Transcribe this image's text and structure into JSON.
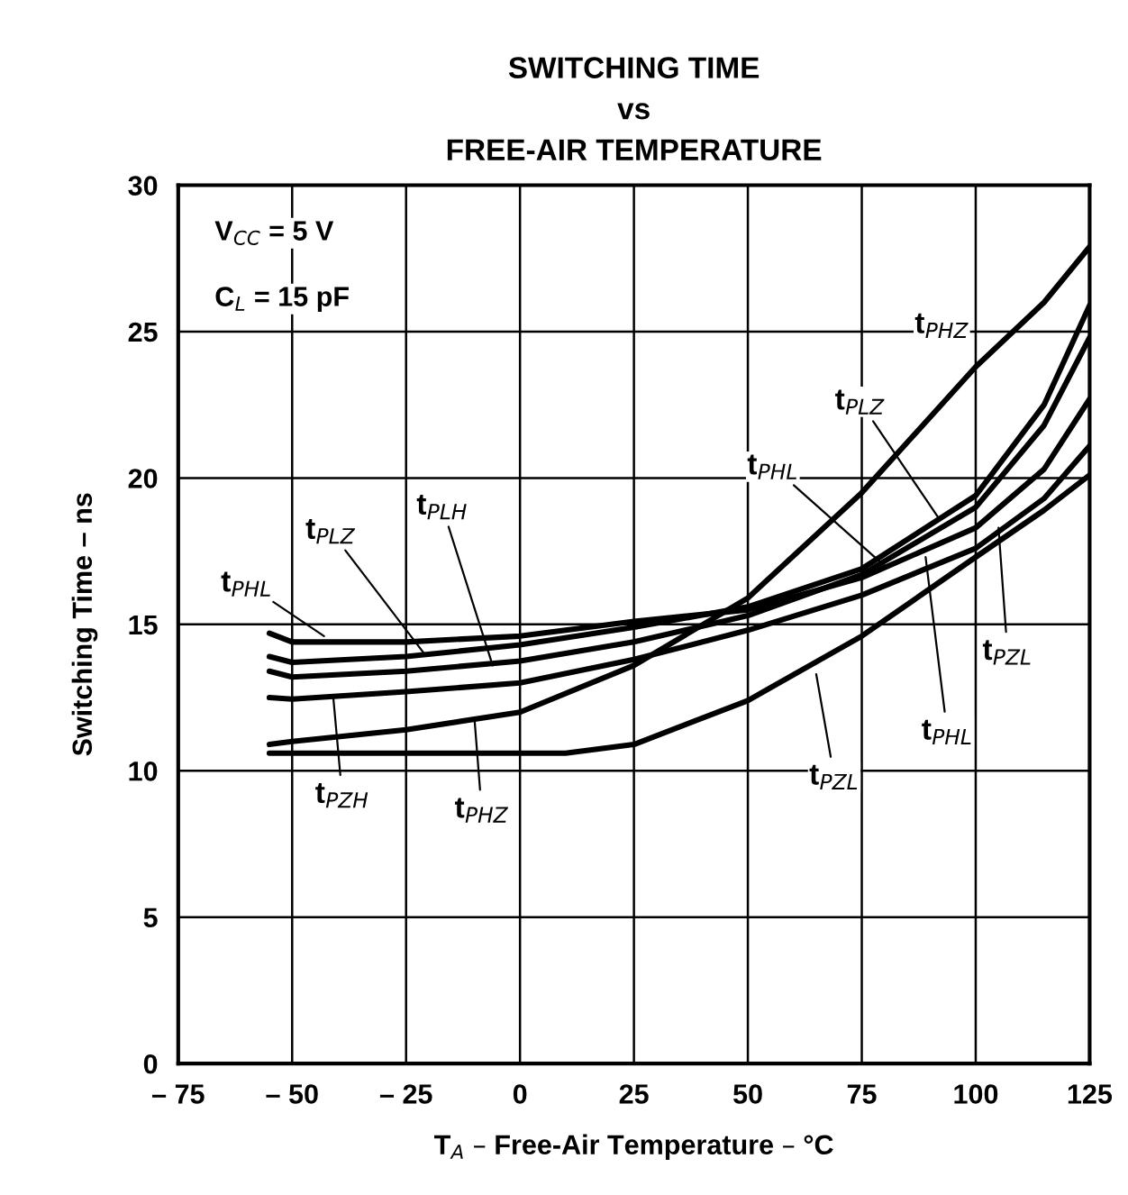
{
  "chart_data": {
    "type": "line",
    "title": "SWITCHING TIME\nvs\nFREE-AIR TEMPERATURE",
    "xlabel": "T$_{A}$ – Free-Air Temperature – °C",
    "ylabel": "Switching Time – ns",
    "xlim": [
      -75,
      125
    ],
    "ylim": [
      0,
      30
    ],
    "xticks": [
      {
        "value": -75,
        "label": "– 75"
      },
      {
        "value": -50,
        "label": "– 50"
      },
      {
        "value": -25,
        "label": "– 25"
      },
      0,
      25,
      50,
      75,
      100,
      125
    ],
    "yticks": [
      0,
      5,
      10,
      15,
      20,
      25,
      30
    ],
    "grid": true,
    "line_style": "solid",
    "marker": "none",
    "series": [
      {
        "color": "#000000",
        "x": [
          -55,
          -50,
          -25,
          0,
          25,
          50,
          75,
          100,
          115,
          125
        ],
        "values": [
          14.7,
          14.4,
          14.4,
          14.6,
          15.1,
          15.5,
          16.6,
          18.3,
          20.3,
          22.7
        ]
      },
      {
        "color": "#000000",
        "x": [
          -55,
          -50,
          -25,
          0,
          25,
          50,
          75,
          100,
          115,
          125
        ],
        "values": [
          13.9,
          13.7,
          13.9,
          14.3,
          14.9,
          15.6,
          16.9,
          19.4,
          22.5,
          25.9
        ]
      },
      {
        "color": "#000000",
        "x": [
          -55,
          -50,
          -25,
          0,
          25,
          50,
          75,
          100,
          115,
          125
        ],
        "values": [
          13.4,
          13.2,
          13.4,
          13.75,
          14.4,
          15.3,
          16.7,
          19.0,
          21.8,
          24.8
        ]
      },
      {
        "color": "#000000",
        "x": [
          -55,
          -50,
          -25,
          0,
          25,
          50,
          75,
          100,
          115,
          125
        ],
        "values": [
          12.5,
          12.45,
          12.7,
          13.0,
          13.8,
          14.8,
          16.0,
          17.6,
          19.3,
          21.1
        ]
      },
      {
        "color": "#000000",
        "x": [
          -55,
          -50,
          -25,
          0,
          25,
          50,
          75,
          100,
          115,
          125
        ],
        "values": [
          10.9,
          11.0,
          11.4,
          12.0,
          13.6,
          15.9,
          19.5,
          23.8,
          26.0,
          27.9
        ]
      },
      {
        "color": "#000000",
        "x": [
          -55,
          -25,
          0,
          10,
          25,
          50,
          75,
          100,
          115,
          125
        ],
        "values": [
          10.6,
          10.6,
          10.6,
          10.6,
          10.9,
          12.4,
          14.6,
          17.3,
          18.9,
          20.1
        ]
      }
    ],
    "annotations": [
      "V$_{CC}$ = 5 V",
      "C$_{L}$ = 15 pF",
      {
        "text": "t$_{PHL}$",
        "x": -43,
        "y": 14.6
      },
      {
        "text": "t$_{PLZ}$",
        "x": -21,
        "y": 14.0
      },
      {
        "text": "t$_{PLH}$",
        "x": -6,
        "y": 13.6
      },
      {
        "text": "t$_{PZH}$",
        "x": -41,
        "y": 12.55
      },
      {
        "text": "t$_{PHZ}$",
        "x": -10,
        "y": 11.8
      },
      {
        "text": "t$_{PHZ}$",
        "x": 106,
        "y": 24.9
      },
      {
        "text": "t$_{PLZ}$",
        "x": 92,
        "y": 18.6
      },
      {
        "text": "t$_{PHL}$",
        "x": 80,
        "y": 17.0
      },
      {
        "text": "t$_{PZL}$",
        "x": 105,
        "y": 18.3
      },
      {
        "text": "t$_{PHL}$",
        "x": 89,
        "y": 17.3
      },
      {
        "text": "t$_{PZL}$",
        "x": 65,
        "y": 13.3
      }
    ]
  }
}
